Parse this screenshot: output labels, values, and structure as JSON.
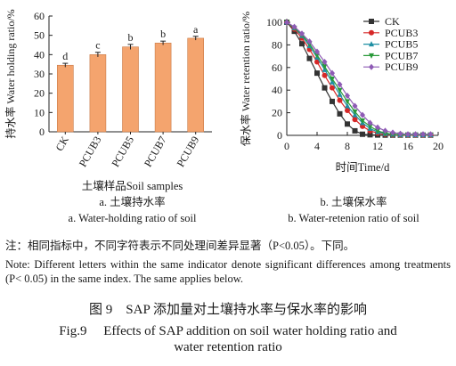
{
  "chart_data": [
    {
      "type": "bar",
      "title": "",
      "categories": [
        "CK",
        "PCUB3",
        "PCUB5",
        "PCUB7",
        "PCUB9"
      ],
      "values": [
        34.5,
        40,
        44,
        46,
        48.5
      ],
      "error": [
        1,
        1.2,
        1.3,
        1,
        1
      ],
      "significance": [
        "d",
        "c",
        "b",
        "b",
        "a"
      ],
      "ylabel": "持水率 Water holding ratio/%",
      "xlabel": "土壤样品Soil samples",
      "ylim": [
        0,
        60
      ],
      "yticks": [
        "0",
        "10",
        "20",
        "30",
        "40",
        "50",
        "60"
      ],
      "bar_color": "#f4a46e",
      "subcaption_cn": "a. 土壤持水率",
      "subcaption_en": "a. Water-holding ratio of soil"
    },
    {
      "type": "line",
      "title": "",
      "ylabel": "保水率 Water retention ratio/%",
      "xlabel": "时间Time/d",
      "xlim": [
        0,
        20
      ],
      "ylim": [
        0,
        100
      ],
      "xticks": [
        "0",
        "4",
        "8",
        "12",
        "16",
        "20"
      ],
      "yticks": [
        "0",
        "20",
        "40",
        "60",
        "80",
        "100"
      ],
      "legend_position": "top-right",
      "x": [
        0,
        1,
        2,
        3,
        4,
        5,
        6,
        7,
        8,
        9,
        10,
        11,
        12,
        13,
        14,
        15,
        16,
        17,
        18,
        19
      ],
      "series": [
        {
          "name": "CK",
          "color": "#333333",
          "marker": "square",
          "values": [
            100,
            92,
            81,
            68,
            55,
            42,
            30,
            19,
            10,
            4,
            1,
            0.5,
            0.3,
            0.2,
            0.2,
            0.2,
            0.2,
            0.2,
            0.2,
            0.2
          ]
        },
        {
          "name": "PCUB3",
          "color": "#d62828",
          "marker": "circle",
          "values": [
            100,
            94,
            86,
            76,
            65,
            53,
            42,
            31,
            22,
            14,
            8,
            4,
            2,
            1,
            0.5,
            0.3,
            0.3,
            0.3,
            0.3,
            0.3
          ]
        },
        {
          "name": "PCUB5",
          "color": "#1f8fa3",
          "marker": "triangle-up",
          "values": [
            100,
            95,
            88,
            79,
            69,
            58,
            47,
            36,
            26,
            18,
            11,
            6,
            3,
            1.5,
            0.8,
            0.5,
            0.4,
            0.4,
            0.4,
            0.4
          ]
        },
        {
          "name": "PCUB7",
          "color": "#2a9a3a",
          "marker": "triangle-down",
          "values": [
            100,
            95,
            89,
            81,
            71,
            61,
            50,
            40,
            30,
            21,
            13,
            8,
            4,
            2,
            1,
            0.6,
            0.5,
            0.5,
            0.5,
            0.5
          ]
        },
        {
          "name": "PCUB9",
          "color": "#8e5bb5",
          "marker": "diamond",
          "values": [
            100,
            96,
            90,
            83,
            74,
            65,
            55,
            45,
            35,
            26,
            18,
            11,
            7,
            4,
            2.5,
            1.5,
            1,
            1,
            1,
            1
          ]
        }
      ],
      "subcaption_cn": "b. 土壤保水率",
      "subcaption_en": "b. Water-retenion ratio of soil"
    }
  ],
  "notes": {
    "cn": "注：相同指标中，不同字符表示不同处理间差异显著（P<0.05）。下同。",
    "en": "Note: Different letters within the same indicator denote significant differences among treatments (P< 0.05) in the same index. The same applies below."
  },
  "caption": {
    "cn": "图 9　SAP 添加量对土壤持水率与保水率的影响",
    "en_line1": "Fig.9　 Effects of SAP addition on soil water holding ratio and",
    "en_line2": "water retention ratio"
  }
}
